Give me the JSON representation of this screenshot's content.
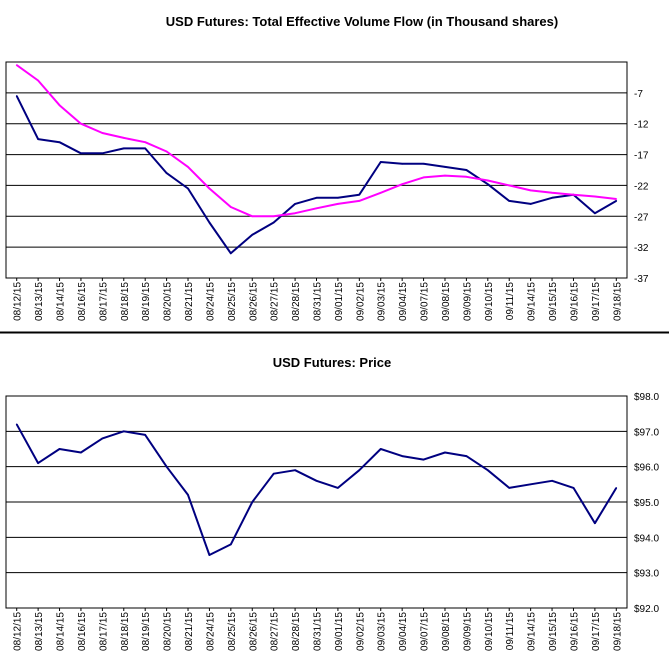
{
  "chart_data": [
    {
      "type": "line",
      "title": "USD Futures: Total Effective Volume Flow (in Thousand shares)",
      "xlabel": "",
      "ylabel": "",
      "y_axis_side": "right",
      "ylim": [
        -37,
        -2
      ],
      "yticks": [
        -7,
        -12,
        -17,
        -22,
        -27,
        -32,
        -37
      ],
      "ytick_labels": [
        "-7",
        "-12",
        "-17",
        "-22",
        "-27",
        "-32",
        "-37"
      ],
      "categories": [
        "08/12/15",
        "08/13/15",
        "08/14/15",
        "08/16/15",
        "08/17/15",
        "08/18/15",
        "08/19/15",
        "08/20/15",
        "08/21/15",
        "08/24/15",
        "08/25/15",
        "08/26/15",
        "08/27/15",
        "08/28/15",
        "08/31/15",
        "09/01/15",
        "09/02/15",
        "09/03/15",
        "09/04/15",
        "09/07/15",
        "09/08/15",
        "09/09/15",
        "09/10/15",
        "09/11/15",
        "09/14/15",
        "09/15/15",
        "09/16/15",
        "09/17/15",
        "09/18/15"
      ],
      "grid": true,
      "series": [
        {
          "color": "#000080",
          "values": [
            -7.5,
            -14.5,
            -15,
            -16.8,
            -16.8,
            -16,
            -16,
            -20,
            -22.5,
            -28,
            -33,
            -30,
            -28,
            -25,
            -24,
            -24,
            -23.5,
            -18.2,
            -18.5,
            -18.5,
            -19,
            -19.5,
            -21.8,
            -24.5,
            -25,
            -24,
            -23.5,
            -26.5,
            -24.5
          ]
        },
        {
          "color": "#ff00ff",
          "values": [
            -2.5,
            -5,
            -9,
            -12,
            -13.5,
            -14.3,
            -15,
            -16.5,
            -19,
            -22.5,
            -25.5,
            -27,
            -27,
            -26.5,
            -25.7,
            -25,
            -24.5,
            -23.2,
            -21.8,
            -20.7,
            -20.4,
            -20.6,
            -21.2,
            -22,
            -22.8,
            -23.2,
            -23.5,
            -23.8,
            -24.2
          ]
        }
      ]
    },
    {
      "type": "line",
      "title": "USD Futures: Price",
      "xlabel": "",
      "ylabel": "",
      "y_axis_side": "right",
      "ylim": [
        92.0,
        98.0
      ],
      "yticks": [
        98.0,
        97.0,
        96.0,
        95.0,
        94.0,
        93.0,
        92.0
      ],
      "ytick_labels": [
        "$98.0",
        "$97.0",
        "$96.0",
        "$95.0",
        "$94.0",
        "$93.0",
        "$92.0"
      ],
      "categories": [
        "08/12/15",
        "08/13/15",
        "08/14/15",
        "08/16/15",
        "08/17/15",
        "08/18/15",
        "08/19/15",
        "08/20/15",
        "08/21/15",
        "08/24/15",
        "08/25/15",
        "08/26/15",
        "08/27/15",
        "08/28/15",
        "08/31/15",
        "09/01/15",
        "09/02/15",
        "09/03/15",
        "09/04/15",
        "09/07/15",
        "09/08/15",
        "09/09/15",
        "09/10/15",
        "09/11/15",
        "09/14/15",
        "09/15/15",
        "09/16/15",
        "09/17/15",
        "09/18/15"
      ],
      "grid": true,
      "series": [
        {
          "color": "#000080",
          "values": [
            97.2,
            96.1,
            96.5,
            96.4,
            96.8,
            97.0,
            96.9,
            96.0,
            95.2,
            93.5,
            93.8,
            95.0,
            95.8,
            95.9,
            95.6,
            95.4,
            95.9,
            96.5,
            96.3,
            96.2,
            96.4,
            96.3,
            95.9,
            95.4,
            95.5,
            95.6,
            95.4,
            94.4,
            95.4
          ]
        }
      ]
    }
  ]
}
